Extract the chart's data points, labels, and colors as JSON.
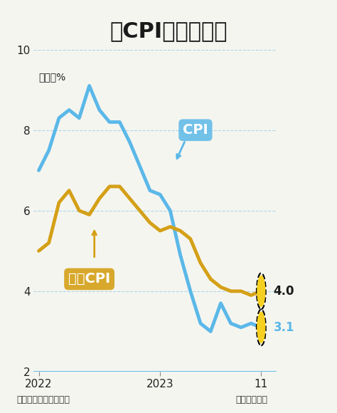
{
  "title": "美CPI年增率變化",
  "subtitle": "單位：%",
  "source": "資料來源：美國勞工部",
  "author": "繪圖：王英嵐",
  "bg_color": "#f5f5f0",
  "title_color": "#1a1a1a",
  "cpi_color": "#5bb8e8",
  "core_cpi_color": "#d4a017",
  "ylim": [
    2,
    10
  ],
  "yticks": [
    2,
    4,
    6,
    8,
    10
  ],
  "xlabel_ticks": [
    "2022",
    "2023",
    "11"
  ],
  "cpi_label": "CPI",
  "core_cpi_label": "核心CPI",
  "cpi_end_value": "3.1",
  "core_end_value": "4.0",
  "cpi_x": [
    0,
    1,
    2,
    3,
    4,
    5,
    6,
    7,
    8,
    9,
    10,
    11,
    12,
    13,
    14,
    15,
    16,
    17,
    18,
    19,
    20,
    21,
    22
  ],
  "cpi_y": [
    7.0,
    7.5,
    8.3,
    8.5,
    8.3,
    9.1,
    8.5,
    8.2,
    8.2,
    7.7,
    7.1,
    6.5,
    6.4,
    6.0,
    4.9,
    4.0,
    3.2,
    3.0,
    3.7,
    3.2,
    3.1,
    3.2,
    3.1
  ],
  "core_x": [
    0,
    1,
    2,
    3,
    4,
    5,
    6,
    7,
    8,
    9,
    10,
    11,
    12,
    13,
    14,
    15,
    16,
    17,
    18,
    19,
    20,
    21,
    22
  ],
  "core_y": [
    5.0,
    5.2,
    6.2,
    6.5,
    6.0,
    5.9,
    6.3,
    6.6,
    6.6,
    6.3,
    6.0,
    5.7,
    5.5,
    5.6,
    5.5,
    5.3,
    4.7,
    4.3,
    4.1,
    4.0,
    4.0,
    3.9,
    4.0
  ]
}
